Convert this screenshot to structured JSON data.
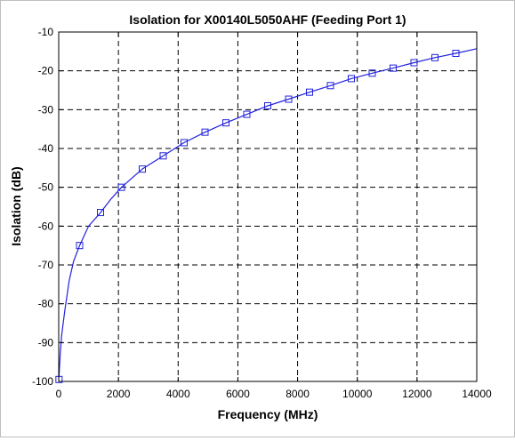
{
  "chart_data": {
    "type": "line",
    "title": "Isolation for X00140L5050AHF (Feeding Port 1)",
    "xlabel": "Frequency (MHz)",
    "ylabel": "Isolation (dB)",
    "xlim": [
      0,
      14000
    ],
    "ylim": [
      -100,
      -10
    ],
    "xticks": [
      0,
      2000,
      4000,
      6000,
      8000,
      10000,
      12000,
      14000
    ],
    "yticks": [
      -100,
      -90,
      -80,
      -70,
      -60,
      -50,
      -40,
      -30,
      -20,
      -10
    ],
    "grid": true,
    "grid_style": "dashed",
    "line_color": "#2222dd",
    "series": [
      {
        "marker": "square",
        "curve": {
          "x": [
            10,
            50,
            100,
            200,
            350,
            500,
            700,
            1000,
            1400,
            1750,
            2100,
            2800,
            3500,
            4200,
            4900,
            5600,
            6300,
            7000,
            7700,
            8400,
            9100,
            9800,
            10500,
            11200,
            11900,
            12600,
            13300,
            14000
          ],
          "y": [
            -99,
            -93,
            -88,
            -82,
            -74,
            -69,
            -65,
            -60,
            -56.5,
            -53,
            -50,
            -45.3,
            -41.9,
            -38.5,
            -35.8,
            -33.4,
            -31.2,
            -29,
            -27.3,
            -25.5,
            -23.8,
            -22,
            -20.6,
            -19.3,
            -17.9,
            -16.6,
            -15.5,
            -14.3
          ]
        },
        "markers": {
          "x": [
            10,
            700,
            1400,
            2100,
            2800,
            3500,
            4200,
            4900,
            5600,
            6300,
            7000,
            7700,
            8400,
            9100,
            9800,
            10500,
            11200,
            11900,
            12600,
            13300
          ],
          "y": [
            -99.5,
            -65,
            -56.5,
            -50,
            -45.3,
            -41.9,
            -38.5,
            -35.8,
            -33.4,
            -31.2,
            -29,
            -27.3,
            -25.5,
            -23.8,
            -22,
            -20.6,
            -19.3,
            -17.9,
            -16.6,
            -15.5
          ]
        }
      }
    ]
  }
}
